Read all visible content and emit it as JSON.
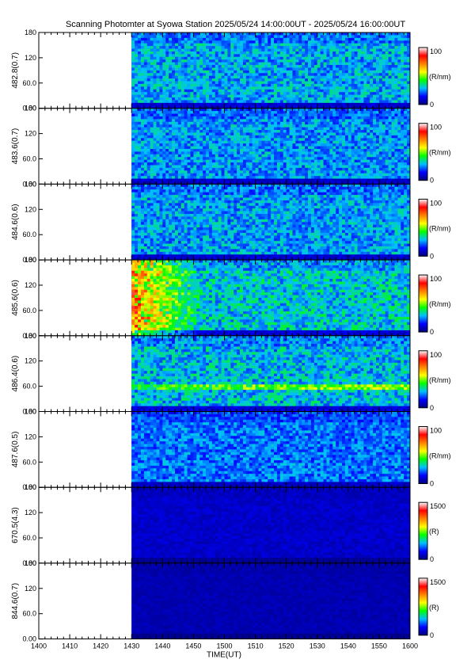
{
  "title": "Scanning Photomter at Syowa Station  2025/05/24 14:00:00UT - 2025/05/24 16:00:00UT",
  "chart_data": {
    "type": "heatmap",
    "xlabel": "TIME(UT)",
    "x_ticks": [
      "1400",
      "1410",
      "1420",
      "1430",
      "1440",
      "1450",
      "1500",
      "1510",
      "1520",
      "1530",
      "1540",
      "1550",
      "1600"
    ],
    "xlim": [
      "1400",
      "1600"
    ],
    "data_start": "1430",
    "y_ticks": [
      "0.00",
      "60.0",
      "120",
      "180"
    ],
    "ylim": [
      0,
      180
    ],
    "colormap": [
      "#00007a",
      "#0000ff",
      "#00c0ff",
      "#00ff00",
      "#ffff00",
      "#ff8000",
      "#ff0000",
      "#ffffff"
    ],
    "panels": [
      {
        "ylabel": "482.8(0.7)",
        "cbar_max": "100",
        "cbar_min": "0",
        "cbar_unit": "(R/nm)",
        "intensity": 0.32,
        "emission_band": null
      },
      {
        "ylabel": "483.6(0.7)",
        "cbar_max": "100",
        "cbar_min": "0",
        "cbar_unit": "(R/nm)",
        "intensity": 0.3,
        "emission_band": null
      },
      {
        "ylabel": "484.6(0.6)",
        "cbar_max": "100",
        "cbar_min": "0",
        "cbar_unit": "(R/nm)",
        "intensity": 0.31,
        "emission_band": null
      },
      {
        "ylabel": "485.6(0.6)",
        "cbar_max": "100",
        "cbar_min": "0",
        "cbar_unit": "(R/nm)",
        "intensity": 0.36,
        "emission_band": null
      },
      {
        "ylabel": "486.4(0.6)",
        "cbar_max": "100",
        "cbar_min": "0",
        "cbar_unit": "(R/nm)",
        "intensity": 0.34,
        "emission_band": 60
      },
      {
        "ylabel": "487.6(0.5)",
        "cbar_max": "100",
        "cbar_min": "0",
        "cbar_unit": "(R/nm)",
        "intensity": 0.27,
        "emission_band": null
      },
      {
        "ylabel": "670.5(4.3)",
        "cbar_max": "1500",
        "cbar_min": "0",
        "cbar_unit": "(R)",
        "intensity": 0.1,
        "emission_band": null
      },
      {
        "ylabel": "844.6(0.7)",
        "cbar_max": "1500",
        "cbar_min": "0",
        "cbar_unit": "(R)",
        "intensity": 0.07,
        "emission_band": null
      }
    ]
  }
}
